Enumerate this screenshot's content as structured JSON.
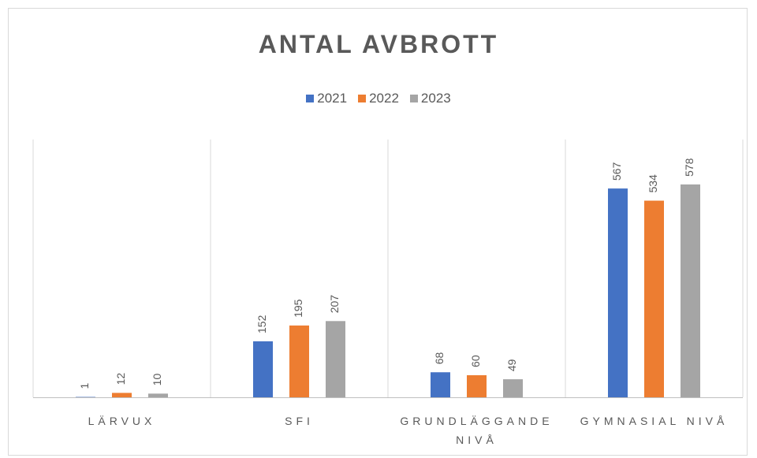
{
  "chart_data": {
    "type": "bar",
    "title": "ANTAL AVBROTT",
    "categories": [
      "LÄRVUX",
      "SFI",
      "GRUNDLÄGGANDE NIVÅ",
      "GYMNASIAL NIVÅ"
    ],
    "series": [
      {
        "name": "2021",
        "color": "#4472c4",
        "values": [
          1,
          152,
          68,
          567
        ]
      },
      {
        "name": "2022",
        "color": "#ed7d31",
        "values": [
          12,
          195,
          60,
          534
        ]
      },
      {
        "name": "2023",
        "color": "#a5a5a5",
        "values": [
          10,
          207,
          49,
          578
        ]
      }
    ],
    "ylim": [
      0,
      700
    ],
    "legend": "top"
  }
}
